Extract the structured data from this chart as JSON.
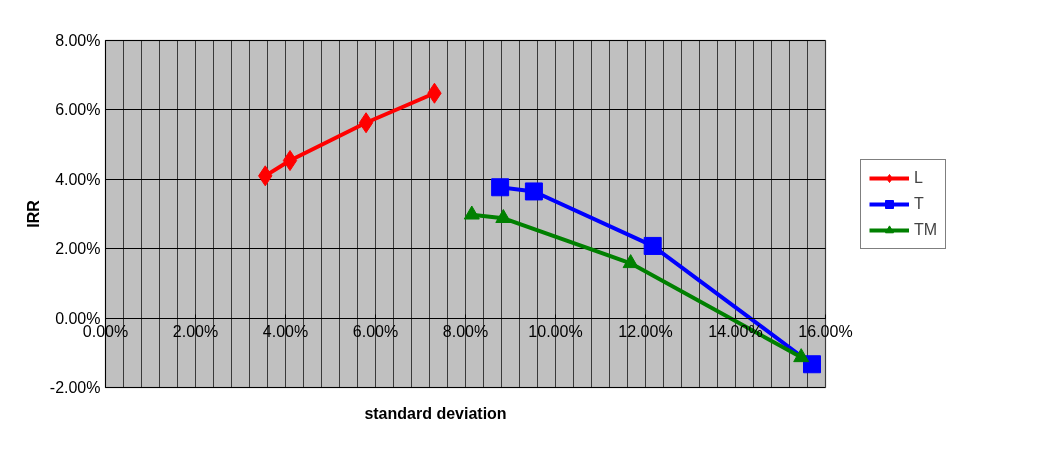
{
  "chart_data": {
    "type": "line",
    "xlabel": "standard deviation",
    "ylabel": "IRR",
    "xlim": [
      0,
      16
    ],
    "ylim": [
      -2,
      8
    ],
    "xticks": [
      {
        "value": 0,
        "label": "0.00%"
      },
      {
        "value": 2,
        "label": "2.00%"
      },
      {
        "value": 4,
        "label": "4.00%"
      },
      {
        "value": 6,
        "label": "6.00%"
      },
      {
        "value": 8,
        "label": "8.00%"
      },
      {
        "value": 10,
        "label": "10.00%"
      },
      {
        "value": 12,
        "label": "12.00%"
      },
      {
        "value": 14,
        "label": "14.00%"
      },
      {
        "value": 16,
        "label": "16.00%"
      }
    ],
    "yticks": [
      {
        "value": -2,
        "label": "-2.00%"
      },
      {
        "value": 0,
        "label": "0.00%"
      },
      {
        "value": 2,
        "label": "2.00%"
      },
      {
        "value": 4,
        "label": "4.00%"
      },
      {
        "value": 6,
        "label": "6.00%"
      },
      {
        "value": 8,
        "label": "8.00%"
      }
    ],
    "grid": true,
    "legend": "right",
    "series": [
      {
        "name": "L",
        "color": "#ff0000",
        "marker": "diamond",
        "x": [
          3.55,
          4.1,
          5.79,
          7.31
        ],
        "values": [
          4.1,
          4.54,
          5.63,
          6.48
        ]
      },
      {
        "name": "T",
        "color": "#0000ff",
        "marker": "square",
        "x": [
          8.77,
          9.52,
          12.16,
          15.7
        ],
        "values": [
          3.77,
          3.65,
          2.08,
          -1.33
        ]
      },
      {
        "name": "TM",
        "color": "#008000",
        "marker": "triangle",
        "x": [
          8.14,
          8.84,
          11.67,
          15.46
        ],
        "values": [
          2.98,
          2.88,
          1.58,
          -1.13
        ]
      }
    ]
  }
}
